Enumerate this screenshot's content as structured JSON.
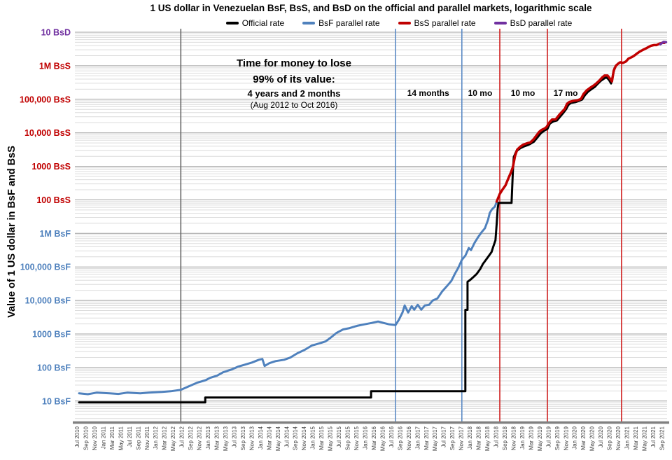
{
  "title": "1 US dollar in Venezuelan BsF, BsS, and BsD on the official and parallel markets, logarithmic scale",
  "legend": [
    {
      "label": "Official rate",
      "color": "#000000"
    },
    {
      "label": "BsF parallel rate",
      "color": "#4f81bd"
    },
    {
      "label": "BsS parallel rate",
      "color": "#c00000"
    },
    {
      "label": "BsD parallel rate",
      "color": "#7030a0"
    }
  ],
  "annotation": {
    "lines": [
      "Time for money to lose",
      "99% of its value:",
      "4 years and 2 months",
      "(Aug 2012 to Oct 2016)"
    ]
  },
  "y_axis": {
    "title": "Value of 1 US dollar in BsF and BsS",
    "labels": [
      {
        "text": "10 BsD",
        "value": 1000000000000.0,
        "color": "#7030a0"
      },
      {
        "text": "1M BsS",
        "value": 100000000000.0,
        "color": "#c00000"
      },
      {
        "text": "100,000 BsS",
        "value": 10000000000.0,
        "color": "#c00000"
      },
      {
        "text": "10,000 BsS",
        "value": 1000000000.0,
        "color": "#c00000"
      },
      {
        "text": "1000 BsS",
        "value": 100000000.0,
        "color": "#c00000"
      },
      {
        "text": "100 BsS",
        "value": 10000000.0,
        "color": "#c00000"
      },
      {
        "text": "1M BsF",
        "value": 1000000.0,
        "color": "#4f81bd"
      },
      {
        "text": "100,000 BsF",
        "value": 100000.0,
        "color": "#4f81bd"
      },
      {
        "text": "10,000 BsF",
        "value": 10000.0,
        "color": "#4f81bd"
      },
      {
        "text": "1000 BsF",
        "value": 1000.0,
        "color": "#4f81bd"
      },
      {
        "text": "100 BsF",
        "value": 100,
        "color": "#4f81bd"
      },
      {
        "text": "10 BsF",
        "value": 10,
        "color": "#4f81bd"
      }
    ]
  },
  "x_axis": {
    "labels": [
      "Jul 2010",
      "Sep 2010",
      "Nov 2010",
      "Jan 2011",
      "Mar 2011",
      "May 2011",
      "Jul 2011",
      "Sep 2011",
      "Nov 2011",
      "Jan 2012",
      "Mar 2012",
      "May 2012",
      "Jul 2012",
      "Sep 2012",
      "Nov 2012",
      "Jan 2013",
      "Mar 2013",
      "May 2013",
      "Jul 2013",
      "Sep 2013",
      "Nov 2013",
      "Jan 2014",
      "Mar 2014",
      "May 2014",
      "Jul 2014",
      "Sep 2014",
      "Nov 2014",
      "Jan 2015",
      "Mar 2015",
      "May 2015",
      "Jul 2015",
      "Sep 2015",
      "Nov 2015",
      "Jan 2016",
      "Mar 2016",
      "May 2016",
      "Jul 2016",
      "Sep 2016",
      "Nov 2016",
      "Jan 2017",
      "Mar 2017",
      "May 2017",
      "Jul 2017",
      "Sep 2017",
      "Nov 2017",
      "Jan 2018",
      "Mar 2018",
      "May 2018",
      "Jul 2018",
      "Sep 2018",
      "Nov 2018",
      "Jan 2019",
      "Mar 2019",
      "May 2019",
      "Jul 2019",
      "Sep 2019",
      "Nov 2019",
      "Jan 2020",
      "Mar 2020",
      "May 2020",
      "Jul 2020",
      "Sep 2020",
      "Nov 2020",
      "Jan 2021",
      "Mar 2021",
      "May 2021",
      "Jul 2021",
      "Sep 2021"
    ]
  },
  "chart_data": {
    "type": "line",
    "x_unit": "months since Jul 2010 (2-month tick labels)",
    "y_unit": "BsF-equivalent per 1 USD (1 BsS = 100,000 BsF; 1 BsD = 1,000,000 BsS), log scale",
    "ylim": [
      2.3,
      1300000000000.0
    ],
    "grid": "horizontal log major+minor",
    "legend_position": "top",
    "series": [
      {
        "name": "Official rate",
        "color": "#000000",
        "width": 3,
        "points": [
          [
            0,
            9.1
          ],
          [
            28.9,
            9.1
          ],
          [
            28.9,
            12.7
          ],
          [
            66.9,
            12.7
          ],
          [
            66.9,
            19.6
          ],
          [
            88.5,
            19.6
          ],
          [
            88.5,
            5250
          ],
          [
            89,
            5250
          ],
          [
            89,
            36000
          ],
          [
            89.7,
            41700
          ],
          [
            90.4,
            50600
          ],
          [
            91.1,
            61900
          ],
          [
            91.9,
            86500
          ],
          [
            92.5,
            121000
          ],
          [
            93.2,
            162000
          ],
          [
            93.8,
            206000
          ],
          [
            94.5,
            277000
          ],
          [
            94.9,
            404000
          ],
          [
            95.4,
            621000
          ],
          [
            95.7,
            2000000.0
          ],
          [
            95.9,
            5200000.0
          ],
          [
            96.1,
            8100000.0
          ],
          [
            99.1,
            8100000.0
          ],
          [
            99.4,
            73000000.0
          ],
          [
            99.6,
            190000000.0
          ],
          [
            100.2,
            284000000.0
          ],
          [
            101.1,
            347000000.0
          ],
          [
            101.8,
            385000000.0
          ],
          [
            102.7,
            424000000.0
          ],
          [
            103.4,
            467000000.0
          ],
          [
            104.2,
            540000000.0
          ],
          [
            105,
            720000000.0
          ],
          [
            105.8,
            970000000.0
          ],
          [
            106.7,
            1180000000.0
          ],
          [
            107.3,
            1300000000.0
          ],
          [
            107.9,
            1900000000.0
          ],
          [
            108.7,
            2200000000.0
          ],
          [
            109.5,
            2330000000.0
          ],
          [
            110.3,
            3100000000.0
          ],
          [
            111.1,
            4170000000.0
          ],
          [
            111.6,
            5070000000.0
          ],
          [
            112.1,
            6770000000.0
          ],
          [
            112.7,
            7800000000.0
          ],
          [
            113.7,
            8200000000.0
          ],
          [
            114.6,
            9000000000.0
          ],
          [
            115.3,
            9900000000.0
          ],
          [
            115.9,
            13200000000.0
          ],
          [
            116.6,
            16700000000.0
          ],
          [
            117.4,
            20000000000.0
          ],
          [
            118.2,
            23500000000.0
          ],
          [
            118.8,
            28700000000.0
          ],
          [
            119.5,
            35000000000.0
          ],
          [
            120.1,
            40000000000.0
          ],
          [
            120.8,
            46000000000.0
          ],
          [
            121.4,
            38000000000.0
          ],
          [
            121.9,
            29600000000.0
          ],
          [
            122.4,
            58000000000.0
          ],
          [
            122.7,
            86000000000.0
          ]
        ]
      },
      {
        "name": "BsF parallel rate",
        "color": "#4f81bd",
        "width": 3,
        "points": [
          [
            0,
            17
          ],
          [
            2,
            16
          ],
          [
            4,
            17.8
          ],
          [
            7,
            17
          ],
          [
            9,
            16.3
          ],
          [
            11,
            17.8
          ],
          [
            14,
            17
          ],
          [
            16,
            17.8
          ],
          [
            19,
            18.7
          ],
          [
            21,
            19.6
          ],
          [
            23.3,
            21.6
          ],
          [
            25,
            27
          ],
          [
            27,
            35
          ],
          [
            29,
            42
          ],
          [
            30,
            49
          ],
          [
            31.6,
            57
          ],
          [
            33,
            72
          ],
          [
            35,
            88
          ],
          [
            36.4,
            106
          ],
          [
            38,
            122
          ],
          [
            39.6,
            141
          ],
          [
            41.2,
            171
          ],
          [
            42,
            180
          ],
          [
            42.5,
            111
          ],
          [
            43.6,
            135
          ],
          [
            45,
            155
          ],
          [
            47,
            171
          ],
          [
            48.4,
            198
          ],
          [
            50,
            265
          ],
          [
            51.7,
            337
          ],
          [
            53.3,
            450
          ],
          [
            55,
            520
          ],
          [
            56.5,
            600
          ],
          [
            57.6,
            770
          ],
          [
            59,
            1080
          ],
          [
            60.5,
            1370
          ],
          [
            62,
            1500
          ],
          [
            63.7,
            1750
          ],
          [
            65.3,
            1930
          ],
          [
            67,
            2130
          ],
          [
            68.5,
            2350
          ],
          [
            69.8,
            2130
          ],
          [
            71.1,
            1930
          ],
          [
            72.5,
            1840
          ],
          [
            73.3,
            2700
          ],
          [
            74.1,
            4380
          ],
          [
            74.6,
            7100
          ],
          [
            75.4,
            4380
          ],
          [
            76.2,
            6760
          ],
          [
            76.8,
            5300
          ],
          [
            77.6,
            7450
          ],
          [
            78.4,
            5300
          ],
          [
            79.2,
            7100
          ],
          [
            80.2,
            7450
          ],
          [
            81,
            9900
          ],
          [
            82.1,
            11500
          ],
          [
            83.2,
            18600
          ],
          [
            84.2,
            26000
          ],
          [
            85.3,
            38300
          ],
          [
            86.1,
            61900
          ],
          [
            86.9,
            95700
          ],
          [
            87.7,
            162000
          ],
          [
            88.5,
            217000
          ],
          [
            89.3,
            367000
          ],
          [
            89.8,
            319000
          ],
          [
            90.6,
            516000
          ],
          [
            91.4,
            761000
          ],
          [
            92.2,
            1070000.0
          ],
          [
            93,
            1430000.0
          ],
          [
            93.7,
            2540000.0
          ],
          [
            94.1,
            4110000.0
          ],
          [
            94.6,
            5220000.0
          ],
          [
            95.3,
            6350000.0
          ],
          [
            95.7,
            8900000.0
          ]
        ]
      },
      {
        "name": "BsS parallel rate",
        "color": "#c00000",
        "width": 3.5,
        "points": [
          [
            95.7,
            8900000.0
          ],
          [
            96.4,
            15100000.0
          ],
          [
            97,
            20000000.0
          ],
          [
            97.7,
            27000000.0
          ],
          [
            98.3,
            42000000.0
          ],
          [
            99,
            68000000.0
          ],
          [
            99.4,
            95000000.0
          ],
          [
            99.9,
            205000000.0
          ],
          [
            100.4,
            317000000.0
          ],
          [
            101.1,
            385000000.0
          ],
          [
            101.8,
            445000000.0
          ],
          [
            102.7,
            490000000.0
          ],
          [
            103.4,
            515000000.0
          ],
          [
            104.1,
            630000000.0
          ],
          [
            104.7,
            800000000.0
          ],
          [
            105.4,
            1060000000.0
          ],
          [
            106,
            1230000000.0
          ],
          [
            106.7,
            1350000000.0
          ],
          [
            107.1,
            1480000000.0
          ],
          [
            107.8,
            2070000000.0
          ],
          [
            108.4,
            2500000000.0
          ],
          [
            109.2,
            2500000000.0
          ],
          [
            110,
            3400000000.0
          ],
          [
            110.7,
            4300000000.0
          ],
          [
            111.3,
            5200000000.0
          ],
          [
            111.8,
            7300000000.0
          ],
          [
            112.4,
            8400000000.0
          ],
          [
            113.2,
            8900000000.0
          ],
          [
            114.2,
            9300000000.0
          ],
          [
            115,
            10300000000.0
          ],
          [
            115.6,
            14400000000.0
          ],
          [
            116.3,
            18300000000.0
          ],
          [
            117.1,
            22000000000.0
          ],
          [
            117.9,
            25600000000.0
          ],
          [
            118.5,
            29600000000.0
          ],
          [
            119.2,
            36000000000.0
          ],
          [
            119.8,
            44000000000.0
          ],
          [
            120.4,
            51000000000.0
          ],
          [
            121.1,
            51000000000.0
          ],
          [
            121.6,
            42000000000.0
          ],
          [
            122.1,
            34000000000.0
          ],
          [
            122.5,
            71000000000.0
          ],
          [
            123,
            100000000000.0
          ],
          [
            123.5,
            115000000000.0
          ],
          [
            124,
            127000000000.0
          ],
          [
            124.6,
            121000000000.0
          ],
          [
            125.3,
            134000000000.0
          ],
          [
            125.9,
            163000000000.0
          ],
          [
            126.6,
            180000000000.0
          ],
          [
            127.2,
            200000000000.0
          ],
          [
            127.8,
            230000000000.0
          ],
          [
            128.5,
            266000000000.0
          ],
          [
            129.1,
            293000000000.0
          ],
          [
            129.8,
            324000000000.0
          ],
          [
            130.4,
            357000000000.0
          ],
          [
            131,
            394000000000.0
          ],
          [
            131.7,
            414000000000.0
          ],
          [
            132.3,
            414000000000.0
          ],
          [
            133,
            456000000000.0
          ],
          [
            133.6,
            480000000000.0
          ],
          [
            134.1,
            480000000000.0
          ]
        ]
      },
      {
        "name": "BsD parallel rate",
        "color": "#7030a0",
        "width": 3.5,
        "points": [
          [
            133.2,
            440000000000.0
          ],
          [
            133.9,
            510000000000.0
          ],
          [
            134.5,
            505000000000.0
          ]
        ]
      }
    ],
    "vlines": [
      {
        "m": 23.3,
        "color": "#666666"
      },
      {
        "m": 72.5,
        "color": "#5b8ac5"
      },
      {
        "m": 87.7,
        "color": "#5b8ac5"
      },
      {
        "m": 96.4,
        "color": "#cf2020"
      },
      {
        "m": 107.3,
        "color": "#cf2020"
      },
      {
        "m": 124.3,
        "color": "#cf2020"
      }
    ],
    "duration_labels": [
      {
        "m": 80.0,
        "text": "14 months"
      },
      {
        "m": 91.9,
        "text": "10 mo"
      },
      {
        "m": 101.7,
        "text": "10 mo"
      },
      {
        "m": 111.5,
        "text": "17 mo"
      }
    ]
  }
}
